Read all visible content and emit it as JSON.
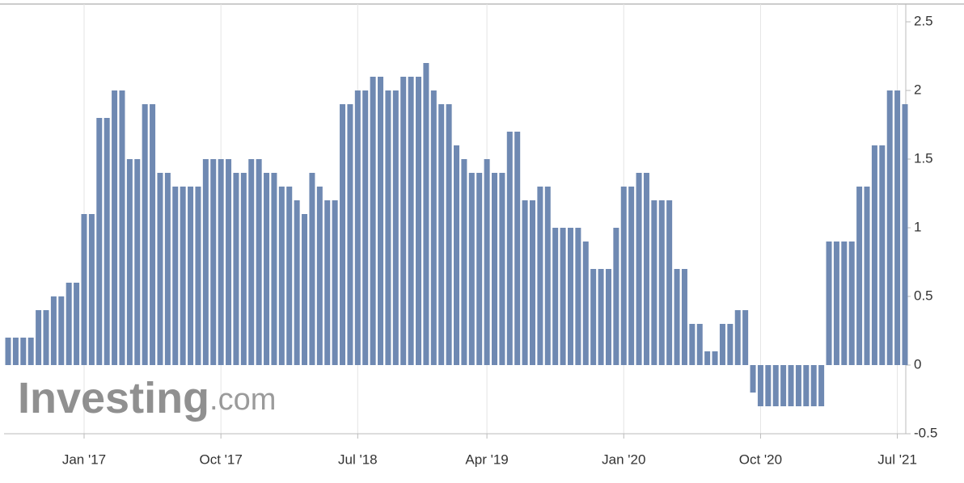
{
  "chart_data": {
    "type": "bar",
    "categories": [
      null,
      null,
      null,
      null,
      null,
      null,
      null,
      null,
      null,
      null,
      "Jan '17",
      null,
      null,
      null,
      null,
      null,
      null,
      null,
      null,
      null,
      null,
      null,
      null,
      null,
      null,
      null,
      null,
      null,
      "Oct '17",
      null,
      null,
      null,
      null,
      null,
      null,
      null,
      null,
      null,
      null,
      null,
      null,
      null,
      null,
      null,
      null,
      null,
      "Jul '18",
      null,
      null,
      null,
      null,
      null,
      null,
      null,
      null,
      null,
      null,
      null,
      null,
      null,
      null,
      null,
      null,
      "Apr '19",
      null,
      null,
      null,
      null,
      null,
      null,
      null,
      null,
      null,
      null,
      null,
      null,
      null,
      null,
      null,
      null,
      null,
      "Jan '20",
      null,
      null,
      null,
      null,
      null,
      null,
      null,
      null,
      null,
      null,
      null,
      null,
      null,
      null,
      null,
      null,
      null,
      "Oct '20",
      null,
      null,
      null,
      null,
      null,
      null,
      null,
      null,
      null,
      null,
      null,
      null,
      null,
      null,
      null,
      null,
      null,
      "Jul '21",
      null
    ],
    "values": [
      0.2,
      0.2,
      0.2,
      0.2,
      0.4,
      0.4,
      0.5,
      0.5,
      0.6,
      0.6,
      1.1,
      1.1,
      1.8,
      1.8,
      2,
      2,
      1.5,
      1.5,
      1.9,
      1.9,
      1.4,
      1.4,
      1.3,
      1.3,
      1.3,
      1.3,
      1.5,
      1.5,
      1.5,
      1.5,
      1.4,
      1.4,
      1.5,
      1.5,
      1.4,
      1.4,
      1.3,
      1.3,
      1.2,
      1.1,
      1.4,
      1.3,
      1.2,
      1.2,
      1.9,
      1.9,
      2,
      2,
      2.1,
      2.1,
      2,
      2,
      2.1,
      2.1,
      2.1,
      2.2,
      2,
      1.9,
      1.9,
      1.6,
      1.5,
      1.4,
      1.4,
      1.5,
      1.4,
      1.4,
      1.7,
      1.7,
      1.2,
      1.2,
      1.3,
      1.3,
      1,
      1,
      1,
      1,
      0.9,
      0.7,
      0.7,
      0.7,
      1,
      1.3,
      1.3,
      1.4,
      1.4,
      1.2,
      1.2,
      1.2,
      0.7,
      0.7,
      0.3,
      0.3,
      0.1,
      0.1,
      0.3,
      0.3,
      0.4,
      0.4,
      -0.2,
      -0.3,
      -0.3,
      -0.3,
      -0.3,
      -0.3,
      -0.3,
      -0.3,
      -0.3,
      -0.3,
      0.9,
      0.9,
      0.9,
      0.9,
      1.3,
      1.3,
      1.6,
      1.6,
      2,
      2,
      1.9
    ],
    "color": "#6f89b2",
    "ylim": [
      -0.5,
      2.5
    ],
    "yticks": [
      -0.5,
      0,
      0.5,
      1,
      1.5,
      2,
      2.5
    ],
    "grid": true,
    "watermark": {
      "brand": "Investing",
      "suffix": ".com"
    }
  }
}
